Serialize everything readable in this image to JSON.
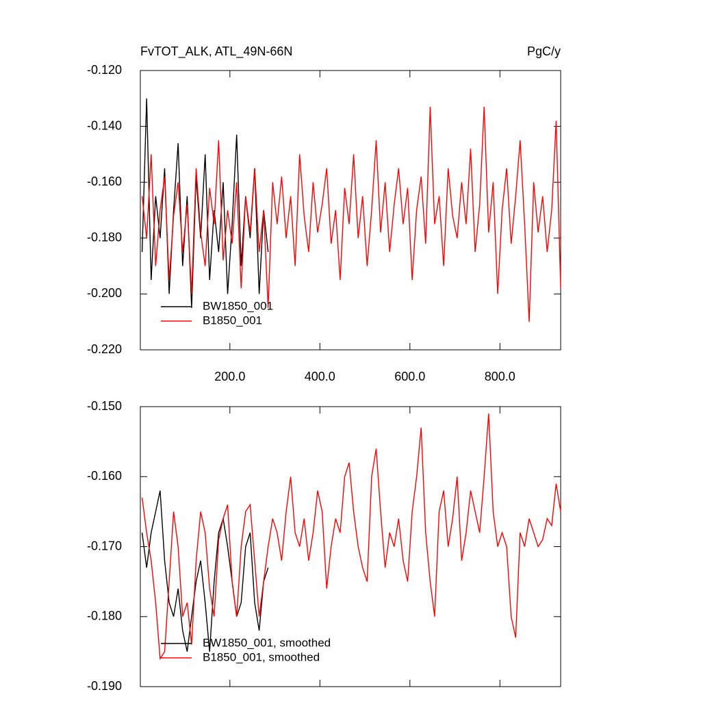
{
  "chart_data": [
    {
      "type": "line",
      "title": "FvTOT_ALK, ATL_49N-66N",
      "units": "PgC/y",
      "legend": "lower left",
      "xlim": [
        1,
        935
      ],
      "xticks": [
        {
          "value": 200,
          "label": "200.0"
        },
        {
          "value": 400,
          "label": "400.0"
        },
        {
          "value": 600,
          "label": "600.0"
        },
        {
          "value": 800,
          "label": "800.0"
        }
      ],
      "ylim": [
        -0.22,
        -0.12
      ],
      "yticks": [
        {
          "value": -0.12,
          "label": "-0.120"
        },
        {
          "value": -0.14,
          "label": "-0.140"
        },
        {
          "value": -0.16,
          "label": "-0.160"
        },
        {
          "value": -0.18,
          "label": "-0.180"
        },
        {
          "value": -0.2,
          "label": "-0.200"
        },
        {
          "value": -0.22,
          "label": "-0.220"
        }
      ],
      "x": [
        5,
        15,
        25,
        35,
        45,
        55,
        65,
        75,
        85,
        95,
        105,
        115,
        125,
        135,
        145,
        155,
        165,
        175,
        185,
        195,
        205,
        215,
        225,
        235,
        245,
        255,
        265,
        275,
        285,
        295,
        305,
        315,
        325,
        335,
        345,
        355,
        365,
        375,
        385,
        395,
        405,
        415,
        425,
        435,
        445,
        455,
        465,
        475,
        485,
        495,
        505,
        515,
        525,
        535,
        545,
        555,
        565,
        575,
        585,
        595,
        605,
        615,
        625,
        635,
        645,
        655,
        665,
        675,
        685,
        695,
        705,
        715,
        725,
        735,
        745,
        755,
        765,
        775,
        785,
        795,
        805,
        815,
        825,
        835,
        845,
        855,
        865,
        875,
        885,
        895,
        905,
        915,
        925,
        935
      ],
      "series": [
        {
          "name": "BW1850_001",
          "color": "#000000",
          "values": [
            -0.185,
            -0.13,
            -0.195,
            -0.165,
            -0.18,
            -0.155,
            -0.2,
            -0.17,
            -0.146,
            -0.19,
            -0.165,
            -0.205,
            -0.158,
            -0.18,
            -0.15,
            -0.195,
            -0.17,
            -0.185,
            -0.16,
            -0.2,
            -0.175,
            -0.143,
            -0.19,
            -0.165,
            -0.18,
            -0.155,
            -0.2,
            -0.17,
            -0.185,
            null,
            null,
            null,
            null,
            null,
            null,
            null,
            null,
            null,
            null,
            null,
            null,
            null,
            null,
            null,
            null,
            null,
            null,
            null,
            null,
            null,
            null,
            null,
            null,
            null,
            null,
            null,
            null,
            null,
            null,
            null,
            null,
            null,
            null,
            null,
            null,
            null,
            null,
            null,
            null,
            null,
            null,
            null,
            null,
            null,
            null,
            null,
            null,
            null,
            null,
            null,
            null,
            null,
            null,
            null,
            null,
            null,
            null,
            null,
            null,
            null,
            null,
            null,
            null,
            null
          ]
        },
        {
          "name": "B1850_001",
          "color": "#ff0000",
          "values": [
            -0.165,
            -0.18,
            -0.15,
            -0.19,
            -0.17,
            -0.158,
            -0.195,
            -0.172,
            -0.16,
            -0.185,
            -0.168,
            -0.2,
            -0.155,
            -0.178,
            -0.19,
            -0.162,
            -0.175,
            -0.145,
            -0.188,
            -0.17,
            -0.182,
            -0.16,
            -0.198,
            -0.165,
            -0.178,
            -0.155,
            -0.185,
            -0.17,
            -0.205,
            -0.16,
            -0.175,
            -0.158,
            -0.18,
            -0.165,
            -0.19,
            -0.15,
            -0.172,
            -0.185,
            -0.16,
            -0.178,
            -0.168,
            -0.155,
            -0.182,
            -0.17,
            -0.195,
            -0.162,
            -0.175,
            -0.15,
            -0.18,
            -0.165,
            -0.19,
            -0.17,
            -0.145,
            -0.178,
            -0.16,
            -0.185,
            -0.168,
            -0.155,
            -0.175,
            -0.162,
            -0.195,
            -0.17,
            -0.158,
            -0.182,
            -0.133,
            -0.175,
            -0.165,
            -0.19,
            -0.155,
            -0.172,
            -0.18,
            -0.16,
            -0.175,
            -0.148,
            -0.185,
            -0.168,
            -0.133,
            -0.178,
            -0.16,
            -0.2,
            -0.17,
            -0.155,
            -0.182,
            -0.165,
            -0.145,
            -0.175,
            -0.21,
            -0.16,
            -0.178,
            -0.165,
            -0.185,
            -0.17,
            -0.138,
            -0.198
          ]
        }
      ]
    },
    {
      "type": "line",
      "legend": "lower left",
      "xlim": [
        1,
        935
      ],
      "xticks": [
        200,
        400,
        600,
        800
      ],
      "ylim": [
        -0.19,
        -0.15
      ],
      "yticks": [
        {
          "value": -0.15,
          "label": "-0.150"
        },
        {
          "value": -0.16,
          "label": "-0.160"
        },
        {
          "value": -0.17,
          "label": "-0.170"
        },
        {
          "value": -0.18,
          "label": "-0.180"
        },
        {
          "value": -0.19,
          "label": "-0.190"
        }
      ],
      "x": [
        5,
        15,
        25,
        35,
        45,
        55,
        65,
        75,
        85,
        95,
        105,
        115,
        125,
        135,
        145,
        155,
        165,
        175,
        185,
        195,
        205,
        215,
        225,
        235,
        245,
        255,
        265,
        275,
        285,
        295,
        305,
        315,
        325,
        335,
        345,
        355,
        365,
        375,
        385,
        395,
        405,
        415,
        425,
        435,
        445,
        455,
        465,
        475,
        485,
        495,
        505,
        515,
        525,
        535,
        545,
        555,
        565,
        575,
        585,
        595,
        605,
        615,
        625,
        635,
        645,
        655,
        665,
        675,
        685,
        695,
        705,
        715,
        725,
        735,
        745,
        755,
        765,
        775,
        785,
        795,
        805,
        815,
        825,
        835,
        845,
        855,
        865,
        875,
        885,
        895,
        905,
        915,
        925,
        935
      ],
      "series": [
        {
          "name": "BW1850_001, smoothed",
          "color": "#000000",
          "values": [
            -0.168,
            -0.173,
            -0.168,
            -0.165,
            -0.162,
            -0.172,
            -0.178,
            -0.18,
            -0.176,
            -0.182,
            -0.185,
            -0.18,
            -0.175,
            -0.172,
            -0.178,
            -0.185,
            -0.175,
            -0.168,
            -0.166,
            -0.17,
            -0.175,
            -0.18,
            -0.178,
            -0.17,
            -0.168,
            -0.178,
            -0.182,
            -0.175,
            -0.173,
            null,
            null,
            null,
            null,
            null,
            null,
            null,
            null,
            null,
            null,
            null,
            null,
            null,
            null,
            null,
            null,
            null,
            null,
            null,
            null,
            null,
            null,
            null,
            null,
            null,
            null,
            null,
            null,
            null,
            null,
            null,
            null,
            null,
            null,
            null,
            null,
            null,
            null,
            null,
            null,
            null,
            null,
            null,
            null,
            null,
            null,
            null,
            null,
            null,
            null,
            null,
            null,
            null,
            null,
            null,
            null,
            null,
            null,
            null,
            null,
            null,
            null,
            null,
            null,
            null
          ]
        },
        {
          "name": "B1850_001, smoothed",
          "color": "#ff0000",
          "values": [
            -0.163,
            -0.168,
            -0.172,
            -0.178,
            -0.186,
            -0.185,
            -0.175,
            -0.165,
            -0.17,
            -0.18,
            -0.178,
            -0.184,
            -0.172,
            -0.165,
            -0.168,
            -0.176,
            -0.18,
            -0.169,
            -0.166,
            -0.164,
            -0.175,
            -0.18,
            -0.17,
            -0.165,
            -0.164,
            -0.172,
            -0.18,
            -0.175,
            -0.17,
            -0.166,
            -0.168,
            -0.172,
            -0.165,
            -0.16,
            -0.168,
            -0.17,
            -0.166,
            -0.172,
            -0.168,
            -0.162,
            -0.165,
            -0.176,
            -0.17,
            -0.166,
            -0.168,
            -0.16,
            -0.158,
            -0.165,
            -0.17,
            -0.173,
            -0.175,
            -0.16,
            -0.156,
            -0.165,
            -0.173,
            -0.168,
            -0.17,
            -0.166,
            -0.172,
            -0.175,
            -0.165,
            -0.16,
            -0.153,
            -0.168,
            -0.175,
            -0.18,
            -0.165,
            -0.162,
            -0.17,
            -0.166,
            -0.16,
            -0.172,
            -0.168,
            -0.162,
            -0.165,
            -0.168,
            -0.16,
            -0.151,
            -0.165,
            -0.17,
            -0.168,
            -0.17,
            -0.18,
            -0.183,
            -0.168,
            -0.17,
            -0.166,
            -0.168,
            -0.17,
            -0.169,
            -0.166,
            -0.167,
            -0.161,
            -0.165
          ]
        }
      ]
    }
  ]
}
